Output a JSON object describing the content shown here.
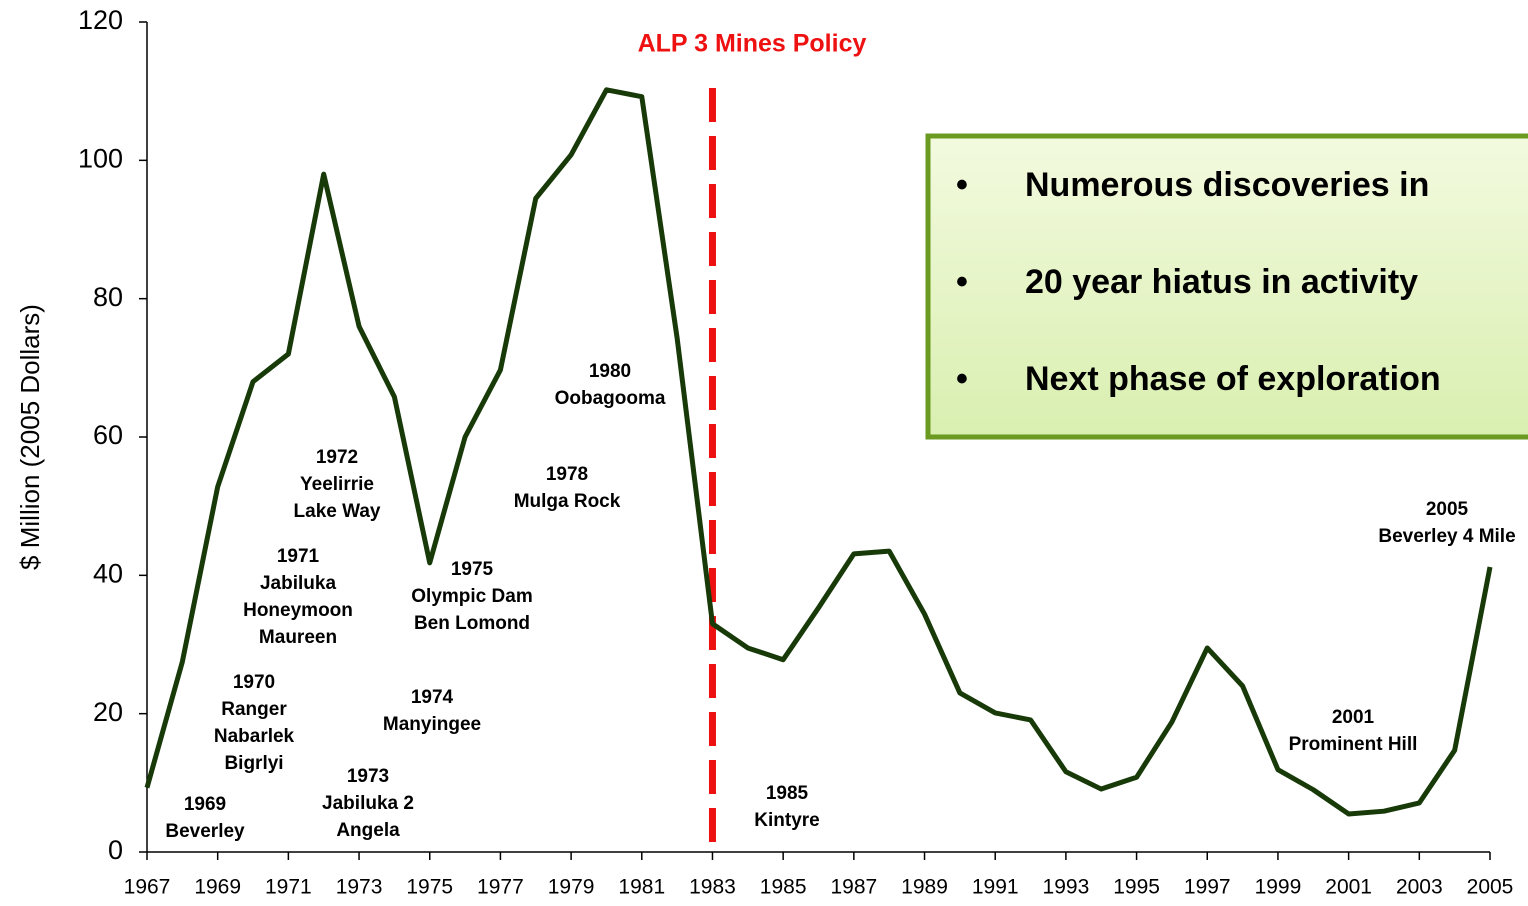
{
  "chart_data": {
    "type": "line",
    "y_label": "$ Million (2005 Dollars)",
    "x": [
      1967,
      1968,
      1969,
      1970,
      1971,
      1972,
      1973,
      1974,
      1975,
      1976,
      1977,
      1978,
      1979,
      1980,
      1981,
      1982,
      1983,
      1984,
      1985,
      1986,
      1987,
      1988,
      1989,
      1990,
      1991,
      1992,
      1993,
      1994,
      1995,
      1996,
      1997,
      1998,
      1999,
      2000,
      2001,
      2002,
      2003,
      2004,
      2005
    ],
    "series": [
      {
        "color": "#173a08",
        "values": [
          9.3,
          27.5,
          52.8,
          68,
          72,
          98,
          76,
          65.8,
          41.8,
          60,
          69.7,
          94.5,
          100.8,
          110.2,
          109.2,
          74.3,
          33,
          29.5,
          27.8,
          35.3,
          43.1,
          43.5,
          34.4,
          23,
          20.1,
          19.1,
          11.6,
          9.1,
          10.8,
          18.8,
          29.5,
          24,
          11.9,
          9,
          5.5,
          5.9,
          7.1,
          14.7,
          41.2
        ]
      }
    ],
    "xlim": [
      1967,
      2005
    ],
    "xticks": [
      1967,
      1969,
      1971,
      1973,
      1975,
      1977,
      1979,
      1981,
      1983,
      1985,
      1987,
      1989,
      1991,
      1993,
      1995,
      1997,
      1999,
      2001,
      2003,
      2005
    ],
    "ylim": [
      0,
      120
    ],
    "yticks": [
      0,
      20,
      40,
      60,
      80,
      100,
      120
    ],
    "reference_line": {
      "x": 1983,
      "label": "ALP 3 Mines Policy",
      "color": "#ee1111"
    },
    "annotations": [
      [
        "1969",
        "Beverley"
      ],
      [
        "1970",
        "Ranger",
        "Nabarlek",
        "Bigrlyi"
      ],
      [
        "1971",
        "Jabiluka",
        "Honeymoon",
        "Maureen"
      ],
      [
        "1972",
        "Yeelirrie",
        "Lake Way"
      ],
      [
        "1973",
        "Jabiluka 2",
        "Angela"
      ],
      [
        "1974",
        "Manyingee"
      ],
      [
        "1975",
        "Olympic Dam",
        "Ben Lomond"
      ],
      [
        "1978",
        "Mulga Rock"
      ],
      [
        "1980",
        "Oobagooma"
      ],
      [
        "1985",
        "Kintyre"
      ],
      [
        "2001",
        "Prominent Hill"
      ],
      [
        "2005",
        "Beverley 4 Mile"
      ]
    ],
    "callout": [
      "Numerous discoveries in",
      "20 year hiatus in activity",
      "Next phase of exploration"
    ]
  }
}
